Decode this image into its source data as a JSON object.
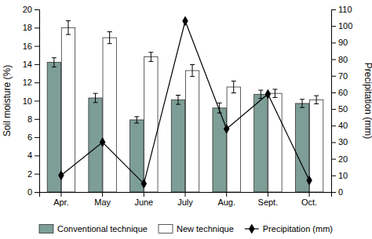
{
  "chart_data": {
    "type": "bar",
    "categories": [
      "Apr.",
      "May",
      "June",
      "July",
      "Aug.",
      "Sept.",
      "Oct."
    ],
    "series": [
      {
        "name": "Conventional technique",
        "type": "bar",
        "color": "#7d9e96",
        "values": [
          14.2,
          10.3,
          7.9,
          10.1,
          9.2,
          10.7,
          9.7
        ],
        "errors": [
          0.5,
          0.5,
          0.35,
          0.5,
          0.55,
          0.45,
          0.45
        ]
      },
      {
        "name": "New technique",
        "type": "bar",
        "color": "#ffffff",
        "values": [
          18.0,
          16.9,
          14.8,
          13.3,
          11.5,
          10.8,
          10.1
        ],
        "errors": [
          0.75,
          0.65,
          0.5,
          0.65,
          0.65,
          0.45,
          0.45
        ]
      },
      {
        "name": "Precipitation (mm)",
        "type": "line",
        "color": "#000000",
        "marker": "diamond",
        "axis": "y2",
        "values": [
          10,
          30,
          5,
          103,
          38,
          59,
          7
        ]
      }
    ],
    "ylabel": "Soil moisture (%)",
    "y2label": "Precipitation (mm)",
    "ylim": [
      0,
      20
    ],
    "yticks": [
      0,
      2,
      4,
      6,
      8,
      10,
      12,
      14,
      16,
      18,
      20
    ],
    "y2lim": [
      0,
      110
    ],
    "y2ticks": [
      0,
      10,
      20,
      30,
      40,
      50,
      60,
      70,
      80,
      90,
      100,
      110
    ],
    "grid": false,
    "legend": "bottom"
  }
}
